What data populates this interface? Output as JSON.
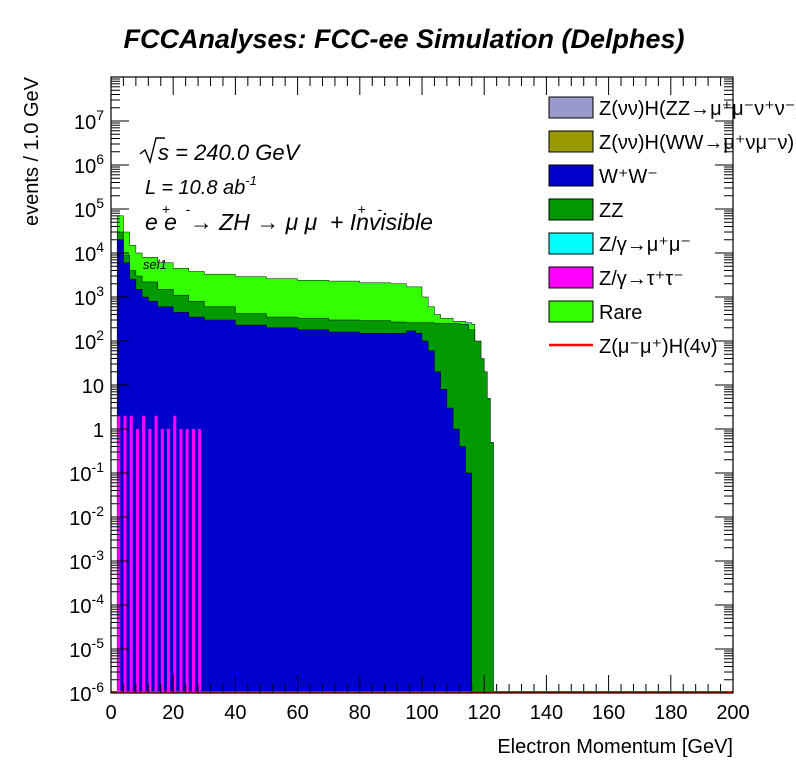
{
  "chart_data": {
    "type": "area",
    "title": "FCCAnalyses: FCC-ee Simulation (Delphes)",
    "xlabel": "Electron Momentum [GeV]",
    "ylabel": "events / 1.0 GeV",
    "xlim": [
      0,
      200
    ],
    "ylim": [
      1e-06,
      100000000.0
    ],
    "yscale": "log",
    "grid": false,
    "stacked": true,
    "legend_position": "top-right",
    "x_ticks": [
      "0",
      "20",
      "40",
      "60",
      "80",
      "100",
      "120",
      "140",
      "160",
      "180",
      "200"
    ],
    "y_ticks": [
      {
        "base": "10",
        "exp": "-6"
      },
      {
        "base": "10",
        "exp": "-5"
      },
      {
        "base": "10",
        "exp": "-4"
      },
      {
        "base": "10",
        "exp": "-3"
      },
      {
        "base": "10",
        "exp": "-2"
      },
      {
        "base": "10",
        "exp": "-1"
      },
      {
        "base": "1",
        "exp": ""
      },
      {
        "base": "10",
        "exp": ""
      },
      {
        "base": "10",
        "exp": "2"
      },
      {
        "base": "10",
        "exp": "3"
      },
      {
        "base": "10",
        "exp": "4"
      },
      {
        "base": "10",
        "exp": "5"
      },
      {
        "base": "10",
        "exp": "6"
      },
      {
        "base": "10",
        "exp": "7"
      }
    ],
    "annotations": {
      "sqrt_s": "s = 240.0 GeV",
      "lumi": "L = 10.8 ab",
      "lumi_exp": "-1",
      "process": "e e  → ZH → μ μ  + Invisible",
      "selection": "sel1"
    },
    "legend": [
      {
        "label": "Z(νν)H(ZZ→μ⁺μ⁻ν⁺ν⁻)",
        "color": "#9999cc",
        "kind": "box"
      },
      {
        "label": "Z(νν)H(WW→μ⁺νμ⁻ν)",
        "color": "#999900",
        "kind": "box"
      },
      {
        "label": "W⁺W⁻",
        "color": "#0000cc",
        "kind": "box"
      },
      {
        "label": "ZZ",
        "color": "#009900",
        "kind": "box"
      },
      {
        "label": "Z/γ→μ⁺μ⁻",
        "color": "#00ffff",
        "kind": "box"
      },
      {
        "label": "Z/γ→τ⁺τ⁻",
        "color": "#ff00ff",
        "kind": "box"
      },
      {
        "label": "Rare",
        "color": "#33ff00",
        "kind": "box"
      },
      {
        "label": "Z(μ⁻μ⁺)H(4ν)",
        "color": "#ff0000",
        "kind": "line"
      }
    ],
    "series": [
      {
        "name": "W⁺W⁻",
        "color": "#0000cc",
        "points": [
          [
            2,
            20000
          ],
          [
            4,
            6000
          ],
          [
            6,
            2500
          ],
          [
            8,
            1500
          ],
          [
            10,
            1000
          ],
          [
            12,
            800
          ],
          [
            15,
            600
          ],
          [
            20,
            450
          ],
          [
            25,
            350
          ],
          [
            30,
            300
          ],
          [
            40,
            230
          ],
          [
            50,
            200
          ],
          [
            60,
            180
          ],
          [
            70,
            160
          ],
          [
            80,
            150
          ],
          [
            90,
            150
          ],
          [
            95,
            170
          ],
          [
            98,
            150
          ],
          [
            100,
            100
          ],
          [
            102,
            60
          ],
          [
            104,
            20
          ],
          [
            106,
            8
          ],
          [
            108,
            3
          ],
          [
            110,
            1
          ],
          [
            112,
            0.4
          ],
          [
            114,
            0.1
          ],
          [
            116,
            1e-06
          ]
        ]
      },
      {
        "name": "ZZ",
        "color": "#009900",
        "points": [
          [
            2,
            30000
          ],
          [
            4,
            9000
          ],
          [
            6,
            4000
          ],
          [
            8,
            3000
          ],
          [
            10,
            2200
          ],
          [
            15,
            1500
          ],
          [
            20,
            1100
          ],
          [
            25,
            800
          ],
          [
            30,
            600
          ],
          [
            40,
            420
          ],
          [
            50,
            350
          ],
          [
            60,
            330
          ],
          [
            70,
            300
          ],
          [
            80,
            290
          ],
          [
            90,
            270
          ],
          [
            95,
            260
          ],
          [
            100,
            260
          ],
          [
            104,
            250
          ],
          [
            108,
            250
          ],
          [
            112,
            240
          ],
          [
            115,
            180
          ],
          [
            117,
            100
          ],
          [
            119,
            40
          ],
          [
            120,
            20
          ],
          [
            121,
            5
          ],
          [
            122,
            0.5
          ],
          [
            123,
            1e-06
          ]
        ]
      },
      {
        "name": "Rare",
        "color": "#33ff00",
        "points": [
          [
            2,
            70000
          ],
          [
            4,
            30000
          ],
          [
            6,
            15000
          ],
          [
            8,
            10000
          ],
          [
            10,
            8000
          ],
          [
            15,
            6000
          ],
          [
            20,
            4500
          ],
          [
            25,
            3800
          ],
          [
            30,
            3300
          ],
          [
            40,
            2900
          ],
          [
            50,
            2600
          ],
          [
            60,
            2400
          ],
          [
            70,
            2300
          ],
          [
            80,
            2100
          ],
          [
            90,
            2000
          ],
          [
            95,
            1700
          ],
          [
            100,
            1000
          ],
          [
            102,
            600
          ],
          [
            104,
            400
          ],
          [
            106,
            330
          ],
          [
            110,
            280
          ],
          [
            114,
            260
          ],
          [
            116,
            240
          ]
        ]
      },
      {
        "name": "Z/γ→τ⁺τ⁻",
        "color": "#ff00ff",
        "points": [
          [
            2,
            2
          ],
          [
            4,
            2
          ],
          [
            6,
            2
          ],
          [
            8,
            1
          ],
          [
            10,
            2
          ],
          [
            12,
            1
          ],
          [
            14,
            2
          ],
          [
            16,
            1
          ],
          [
            18,
            1
          ],
          [
            20,
            2
          ],
          [
            22,
            1
          ],
          [
            24,
            1
          ],
          [
            26,
            1
          ],
          [
            28,
            1
          ]
        ]
      },
      {
        "name": "Z(μ⁻μ⁺)H(4ν)",
        "color": "#ff0000",
        "points": [
          [
            0,
            1e-06
          ],
          [
            200,
            1e-06
          ]
        ]
      }
    ]
  }
}
